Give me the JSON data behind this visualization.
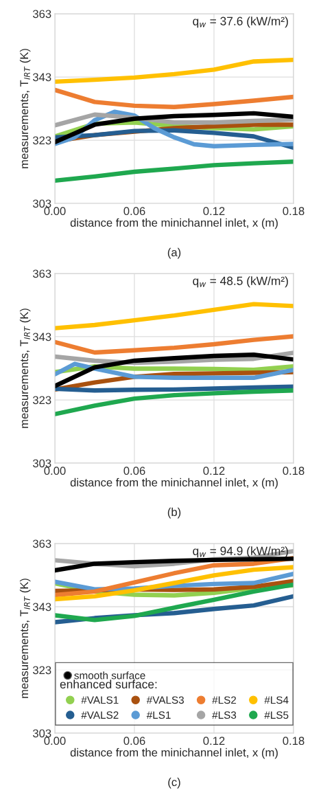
{
  "chart_data": [
    {
      "type": "line",
      "title": "(a)",
      "xlabel": "distance from the minichannel inlet, x (m)",
      "ylabel": "measurements, T$_{IRT}$ (K)",
      "annotations": [
        "q$_{w}$ = 37.6 (kW/m²)"
      ],
      "x": [
        0,
        0.03,
        0.06,
        0.09,
        0.12,
        0.15,
        0.18
      ],
      "xlim": [
        0,
        0.18
      ],
      "ylim": [
        303,
        363
      ],
      "xticks": [
        {
          "value": 0,
          "label": "0.00"
        },
        {
          "value": 0.06,
          "label": "0.06"
        },
        {
          "value": 0.12,
          "label": "0.12"
        },
        {
          "value": 0.18,
          "label": "0.18"
        }
      ],
      "yticks": [
        303,
        323,
        343,
        363
      ],
      "grid": true,
      "series": [
        {
          "color": "#ffc000",
          "values": [
            341.5,
            342.1,
            342.8,
            343.9,
            345.3,
            347.9,
            348.4
          ]
        },
        {
          "color": "#ed7d31",
          "values": [
            338.9,
            335.1,
            333.9,
            333.5,
            334.4,
            335.5,
            336.7
          ]
        },
        {
          "color": "#92d050",
          "values": [
            324.2,
            328.2,
            328.6,
            327.5,
            326.8,
            326.4,
            327.4
          ]
        },
        {
          "color": "#a9510f",
          "values": [
            322.6,
            324.6,
            325.7,
            326.8,
            327.4,
            327.9,
            327.9
          ]
        },
        {
          "color": "#255e91",
          "values": [
            323.9,
            324.6,
            325.9,
            326.1,
            325.3,
            324.2,
            320.6
          ]
        },
        {
          "color": "#5b9bd5",
          "x": [
            0,
            0.015,
            0.03,
            0.045,
            0.06,
            0.075,
            0.09,
            0.105,
            0.12,
            0.15,
            0.18
          ],
          "values": [
            321.8,
            323.9,
            329.3,
            332.0,
            330.8,
            326.8,
            323.9,
            321.7,
            321.1,
            321.5,
            321.8
          ]
        },
        {
          "color": "#a5a5a5",
          "values": [
            327.7,
            331.1,
            330.1,
            328.6,
            328.6,
            329.1,
            329.5
          ]
        },
        {
          "color": "#1fa84f",
          "values": [
            310.2,
            311.5,
            313.0,
            314.0,
            315.1,
            315.7,
            316.2
          ]
        },
        {
          "color": "#000000",
          "values": [
            322.4,
            327.9,
            329.8,
            330.6,
            331.0,
            331.5,
            330.4
          ]
        }
      ]
    },
    {
      "type": "line",
      "title": "(b)",
      "xlabel": "distance from the minichannel inlet, x (m)",
      "ylabel": "measurements, T$_{IRT}$ (K)",
      "annotations": [
        "q$_{w}$ = 48.5 (kW/m²)"
      ],
      "x": [
        0,
        0.03,
        0.06,
        0.09,
        0.12,
        0.15,
        0.18
      ],
      "xlim": [
        0,
        0.18
      ],
      "ylim": [
        303,
        363
      ],
      "xticks": [
        {
          "value": 0,
          "label": "0.00"
        },
        {
          "value": 0.06,
          "label": "0.06"
        },
        {
          "value": 0.12,
          "label": "0.12"
        },
        {
          "value": 0.18,
          "label": "0.18"
        }
      ],
      "yticks": [
        303,
        323,
        343,
        363
      ],
      "grid": true,
      "series": [
        {
          "color": "#ffc000",
          "values": [
            345.7,
            346.7,
            348.2,
            349.7,
            351.5,
            353.3,
            352.7
          ]
        },
        {
          "color": "#ed7d31",
          "values": [
            341.3,
            338.0,
            338.7,
            339.5,
            340.6,
            342.0,
            343.1
          ]
        },
        {
          "color": "#92d050",
          "values": [
            331.8,
            333.6,
            332.9,
            332.9,
            332.8,
            332.5,
            333.6
          ]
        },
        {
          "color": "#a9510f",
          "values": [
            326.3,
            328.5,
            330.3,
            331.2,
            331.4,
            331.6,
            331.8
          ]
        },
        {
          "color": "#255e91",
          "values": [
            326.5,
            326.0,
            326.2,
            326.3,
            326.6,
            326.9,
            327.2
          ]
        },
        {
          "color": "#5b9bd5",
          "x": [
            0,
            0.015,
            0.03,
            0.06,
            0.09,
            0.12,
            0.15,
            0.18
          ],
          "values": [
            331.1,
            334.4,
            332.9,
            330.3,
            330.0,
            330.0,
            330.0,
            332.5
          ]
        },
        {
          "color": "#a5a5a5",
          "values": [
            336.7,
            335.4,
            334.7,
            335.1,
            335.7,
            336.0,
            337.9
          ]
        },
        {
          "color": "#1fa84f",
          "values": [
            318.5,
            321.2,
            323.4,
            324.5,
            325.1,
            325.6,
            326.0
          ]
        },
        {
          "color": "#000000",
          "values": [
            327.4,
            333.3,
            335.4,
            336.2,
            336.9,
            337.3,
            335.8
          ]
        }
      ]
    },
    {
      "type": "line",
      "title": "(c)",
      "xlabel": "distance from the minichannel inlet, x (m)",
      "ylabel": "measurements, T$_{IRT}$ (K)",
      "annotations": [
        "q$_{w}$ = 94.9 (kW/m²)"
      ],
      "x": [
        0,
        0.03,
        0.06,
        0.09,
        0.12,
        0.15,
        0.18
      ],
      "xlim": [
        0,
        0.18
      ],
      "ylim": [
        303,
        363
      ],
      "xticks": [
        {
          "value": 0,
          "label": "0.00"
        },
        {
          "value": 0.06,
          "label": "0.06"
        },
        {
          "value": 0.12,
          "label": "0.12"
        },
        {
          "value": 0.18,
          "label": "0.18"
        }
      ],
      "yticks": [
        303,
        323,
        343,
        363
      ],
      "grid": true,
      "legend": "bottom",
      "legend_title": "enhanced surface:",
      "series": [
        {
          "name": "smooth surface",
          "color": "#000000",
          "values": [
            354.5,
            356.6,
            357.1,
            357.5,
            357.8,
            358.0,
            358.2
          ]
        },
        {
          "name": "#VALS1",
          "color": "#92d050",
          "values": [
            350.4,
            347.8,
            346.8,
            346.6,
            347.4,
            348.9,
            349.8
          ]
        },
        {
          "name": "#VALS2",
          "color": "#255e91",
          "values": [
            338.1,
            339.4,
            340.3,
            341.0,
            342.3,
            343.4,
            346.3
          ]
        },
        {
          "name": "#VALS3",
          "color": "#a9510f",
          "values": [
            348.0,
            348.2,
            348.5,
            348.3,
            348.5,
            349.3,
            351.1
          ]
        },
        {
          "name": "#LS1",
          "color": "#5b9bd5",
          "values": [
            350.9,
            348.5,
            348.8,
            349.6,
            350.2,
            350.5,
            353.4
          ]
        },
        {
          "name": "#LS2",
          "color": "#ed7d31",
          "values": [
            346.7,
            347.8,
            350.7,
            353.6,
            356.1,
            356.6,
            358.4
          ]
        },
        {
          "name": "#LS3",
          "color": "#a5a5a5",
          "values": [
            357.7,
            356.6,
            355.8,
            356.6,
            358.0,
            358.5,
            360.6
          ]
        },
        {
          "name": "#LS4",
          "color": "#ffc000",
          "values": [
            345.4,
            346.3,
            348.2,
            350.5,
            352.9,
            354.7,
            355.5
          ]
        },
        {
          "name": "#LS5",
          "color": "#1fa84f",
          "values": [
            340.3,
            338.8,
            340.1,
            342.7,
            345.2,
            347.8,
            350.0
          ]
        }
      ]
    }
  ]
}
